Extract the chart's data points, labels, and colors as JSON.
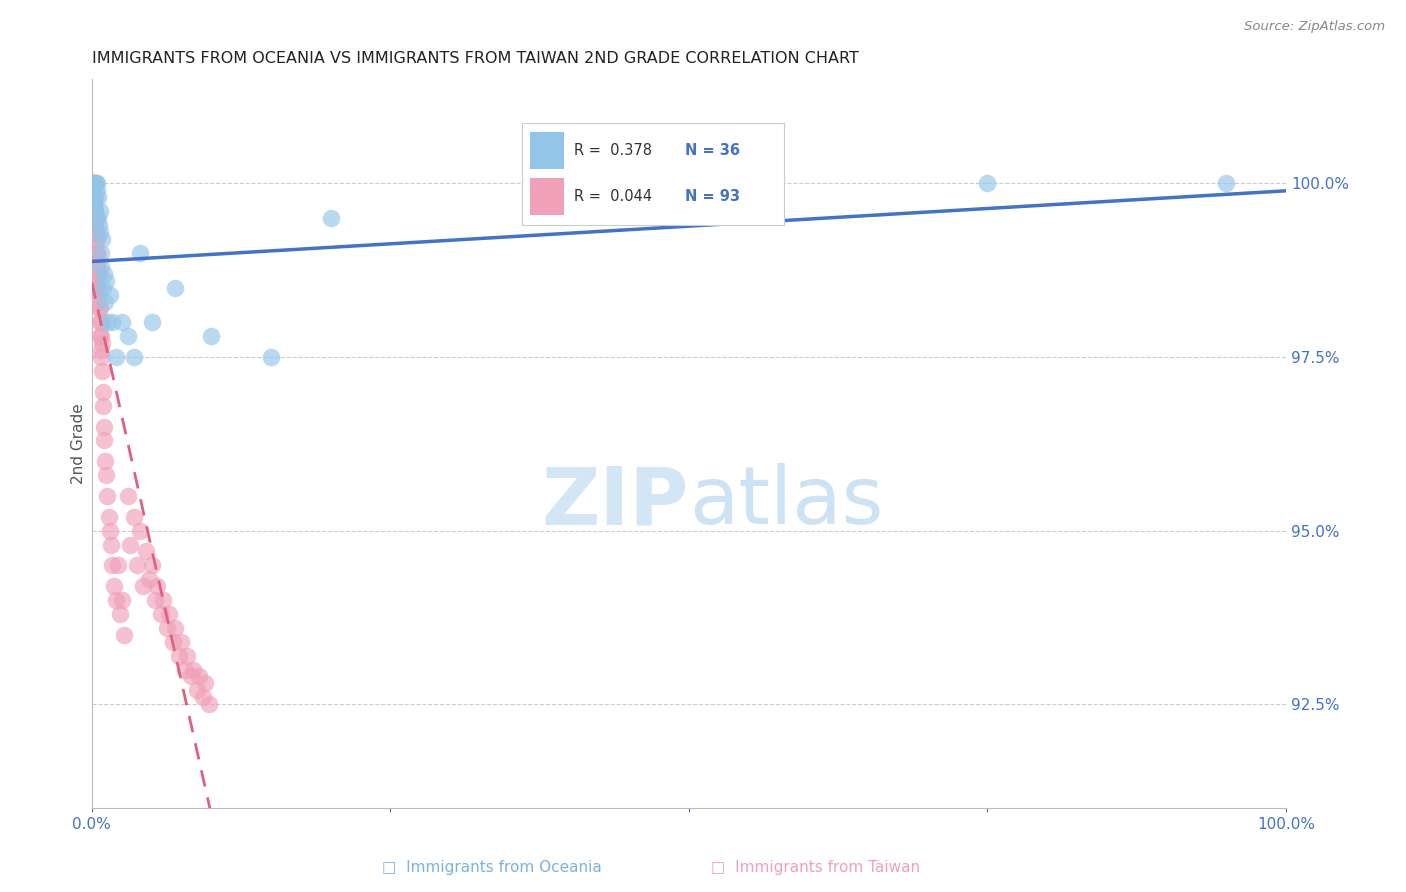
{
  "title": "IMMIGRANTS FROM OCEANIA VS IMMIGRANTS FROM TAIWAN 2ND GRADE CORRELATION CHART",
  "source": "Source: ZipAtlas.com",
  "ylabel": "2nd Grade",
  "ylabel_right_ticks": [
    92.5,
    95.0,
    97.5,
    100.0
  ],
  "ylabel_right_labels": [
    "92.5%",
    "95.0%",
    "97.5%",
    "100.0%"
  ],
  "xmin": 0.0,
  "xmax": 100.0,
  "ymin": 91.0,
  "ymax": 101.5,
  "legend_r_oceania": "0.378",
  "legend_n_oceania": "36",
  "legend_r_taiwan": "0.044",
  "legend_n_taiwan": "93",
  "color_oceania": "#92c5e8",
  "color_taiwan": "#f0a0b8",
  "color_oceania_line": "#4472c4",
  "color_taiwan_line": "#e06080",
  "oceania_x": [
    0.1,
    0.15,
    0.2,
    0.25,
    0.3,
    0.35,
    0.4,
    0.45,
    0.5,
    0.55,
    0.6,
    0.65,
    0.7,
    0.75,
    0.8,
    0.85,
    0.9,
    1.0,
    1.1,
    1.2,
    1.3,
    1.5,
    1.7,
    2.0,
    2.5,
    3.0,
    3.5,
    4.0,
    5.0,
    7.0,
    10.0,
    15.0,
    20.0,
    50.0,
    75.0,
    95.0
  ],
  "oceania_y": [
    99.8,
    99.6,
    99.7,
    100.0,
    100.0,
    100.0,
    100.0,
    99.9,
    99.8,
    99.5,
    99.4,
    99.6,
    99.3,
    99.0,
    98.8,
    99.2,
    98.5,
    98.7,
    98.3,
    98.6,
    98.0,
    98.4,
    98.0,
    97.5,
    98.0,
    97.8,
    97.5,
    99.0,
    98.0,
    98.5,
    97.8,
    97.5,
    99.5,
    99.5,
    100.0,
    100.0
  ],
  "taiwan_x": [
    0.05,
    0.08,
    0.1,
    0.12,
    0.13,
    0.15,
    0.15,
    0.17,
    0.18,
    0.2,
    0.2,
    0.22,
    0.23,
    0.25,
    0.25,
    0.27,
    0.28,
    0.3,
    0.3,
    0.32,
    0.33,
    0.35,
    0.35,
    0.37,
    0.38,
    0.4,
    0.4,
    0.42,
    0.43,
    0.45,
    0.45,
    0.47,
    0.48,
    0.5,
    0.52,
    0.55,
    0.57,
    0.6,
    0.62,
    0.65,
    0.68,
    0.7,
    0.73,
    0.75,
    0.78,
    0.8,
    0.82,
    0.85,
    0.9,
    0.95,
    1.0,
    1.05,
    1.1,
    1.2,
    1.3,
    1.4,
    1.5,
    1.6,
    1.7,
    1.9,
    2.0,
    2.2,
    2.4,
    2.5,
    2.7,
    3.0,
    3.2,
    3.5,
    3.8,
    4.0,
    4.3,
    4.5,
    4.8,
    5.0,
    5.3,
    5.5,
    5.8,
    6.0,
    6.3,
    6.5,
    6.8,
    7.0,
    7.3,
    7.5,
    7.8,
    8.0,
    8.3,
    8.5,
    8.8,
    9.0,
    9.3,
    9.5,
    9.8
  ],
  "taiwan_y": [
    100.0,
    100.0,
    99.9,
    100.0,
    99.8,
    99.7,
    100.0,
    99.6,
    99.8,
    99.5,
    100.0,
    99.7,
    99.5,
    99.5,
    99.8,
    99.4,
    99.6,
    99.3,
    99.6,
    99.5,
    99.3,
    99.2,
    99.5,
    99.3,
    99.0,
    99.2,
    98.8,
    99.0,
    98.7,
    99.0,
    98.5,
    98.7,
    98.9,
    98.5,
    98.3,
    98.5,
    98.7,
    98.2,
    98.4,
    98.0,
    98.2,
    97.8,
    98.0,
    97.6,
    97.8,
    97.5,
    97.7,
    97.3,
    97.0,
    96.8,
    96.5,
    96.3,
    96.0,
    95.8,
    95.5,
    95.2,
    95.0,
    94.8,
    94.5,
    94.2,
    94.0,
    94.5,
    93.8,
    94.0,
    93.5,
    95.5,
    94.8,
    95.2,
    94.5,
    95.0,
    94.2,
    94.7,
    94.3,
    94.5,
    94.0,
    94.2,
    93.8,
    94.0,
    93.6,
    93.8,
    93.4,
    93.6,
    93.2,
    93.4,
    93.0,
    93.2,
    92.9,
    93.0,
    92.7,
    92.9,
    92.6,
    92.8,
    92.5
  ]
}
